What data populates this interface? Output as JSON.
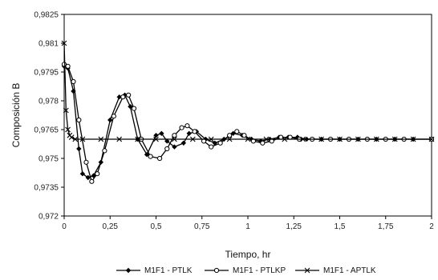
{
  "chart_data": {
    "type": "line",
    "xlabel": "Tiempo, hr",
    "ylabel": "Composición B",
    "xlim": [
      0,
      2
    ],
    "ylim": [
      0.972,
      0.9825
    ],
    "x_ticks": [
      0,
      0.25,
      0.5,
      0.75,
      1,
      1.25,
      1.5,
      1.75,
      2
    ],
    "x_tick_labels": [
      "0",
      "0,25",
      "0,5",
      "0,75",
      "1",
      "1,25",
      "1,5",
      "1,75",
      "2"
    ],
    "y_ticks": [
      0.972,
      0.9735,
      0.975,
      0.9765,
      0.978,
      0.9795,
      0.981,
      0.9825
    ],
    "y_tick_labels": [
      "0,972",
      "0,9735",
      "0,975",
      "0,9765",
      "0,978",
      "0,9795",
      "0,981",
      "0,9825"
    ],
    "grid": false,
    "legend_position": "bottom",
    "series": [
      {
        "name": "M1F1 - PTLK",
        "marker": "diamond",
        "x": [
          0,
          0.02,
          0.05,
          0.08,
          0.1,
          0.13,
          0.16,
          0.2,
          0.25,
          0.3,
          0.33,
          0.36,
          0.4,
          0.45,
          0.5,
          0.53,
          0.56,
          0.6,
          0.65,
          0.68,
          0.72,
          0.77,
          0.82,
          0.87,
          0.92,
          0.97,
          1.02,
          1.07,
          1.12,
          1.17,
          1.22,
          1.27,
          1.32,
          1.4,
          1.5,
          1.6,
          1.7,
          1.8,
          1.9,
          2.0
        ],
        "y": [
          0.9798,
          0.9797,
          0.9785,
          0.9755,
          0.9742,
          0.974,
          0.9741,
          0.9748,
          0.977,
          0.9782,
          0.9783,
          0.9777,
          0.976,
          0.9752,
          0.9762,
          0.9763,
          0.9759,
          0.9756,
          0.9758,
          0.9763,
          0.9764,
          0.976,
          0.9758,
          0.976,
          0.9763,
          0.9762,
          0.976,
          0.9759,
          0.976,
          0.9761,
          0.9761,
          0.9761,
          0.976,
          0.976,
          0.976,
          0.976,
          0.976,
          0.976,
          0.976,
          0.976
        ]
      },
      {
        "name": "M1F1 - PTLKP",
        "marker": "circle",
        "x": [
          0,
          0.02,
          0.05,
          0.08,
          0.12,
          0.15,
          0.18,
          0.22,
          0.27,
          0.32,
          0.35,
          0.38,
          0.42,
          0.47,
          0.52,
          0.56,
          0.6,
          0.64,
          0.67,
          0.71,
          0.76,
          0.8,
          0.85,
          0.9,
          0.94,
          0.98,
          1.03,
          1.08,
          1.13,
          1.18,
          1.23,
          1.28,
          1.35,
          1.45,
          1.55,
          1.65,
          1.75,
          1.85,
          2.0
        ],
        "y": [
          0.9799,
          0.9798,
          0.979,
          0.977,
          0.9748,
          0.9738,
          0.9742,
          0.9754,
          0.9772,
          0.9782,
          0.9783,
          0.9776,
          0.976,
          0.9751,
          0.975,
          0.9755,
          0.9762,
          0.9766,
          0.9767,
          0.9764,
          0.9759,
          0.9756,
          0.9758,
          0.9762,
          0.9764,
          0.9762,
          0.9759,
          0.9758,
          0.9759,
          0.9761,
          0.9761,
          0.976,
          0.976,
          0.976,
          0.976,
          0.976,
          0.976,
          0.976,
          0.976
        ]
      },
      {
        "name": "M1F1 - APTLK",
        "marker": "x",
        "x": [
          0,
          0.01,
          0.02,
          0.03,
          0.04,
          0.06,
          0.1,
          0.2,
          0.3,
          0.4,
          0.5,
          0.6,
          0.7,
          0.8,
          0.9,
          1.0,
          1.1,
          1.2,
          1.3,
          1.4,
          1.5,
          1.6,
          1.7,
          1.8,
          1.9,
          2.0
        ],
        "y": [
          0.981,
          0.9775,
          0.9765,
          0.9762,
          0.9761,
          0.976,
          0.976,
          0.976,
          0.976,
          0.976,
          0.976,
          0.976,
          0.976,
          0.976,
          0.976,
          0.976,
          0.976,
          0.976,
          0.976,
          0.976,
          0.976,
          0.976,
          0.976,
          0.976,
          0.976,
          0.976
        ]
      }
    ]
  }
}
